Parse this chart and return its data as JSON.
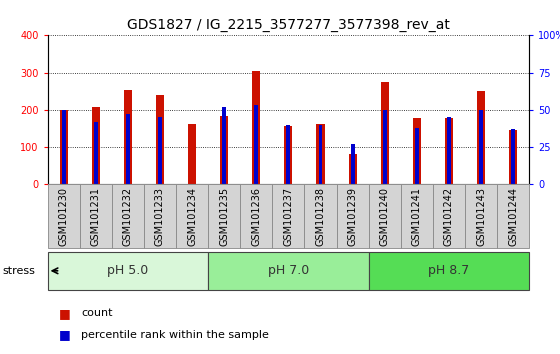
{
  "title": "GDS1827 / IG_2215_3577277_3577398_rev_at",
  "samples": [
    "GSM101230",
    "GSM101231",
    "GSM101232",
    "GSM101233",
    "GSM101234",
    "GSM101235",
    "GSM101236",
    "GSM101237",
    "GSM101238",
    "GSM101239",
    "GSM101240",
    "GSM101241",
    "GSM101242",
    "GSM101243",
    "GSM101244"
  ],
  "counts": [
    200,
    208,
    252,
    240,
    162,
    184,
    305,
    155,
    162,
    80,
    275,
    178,
    178,
    250,
    145
  ],
  "percentile_ranks": [
    50,
    42,
    47,
    45,
    0,
    52,
    53,
    40,
    40,
    27,
    50,
    38,
    45,
    50,
    37
  ],
  "groups": [
    {
      "label": "pH 5.0",
      "start": 0,
      "end": 5,
      "color": "#d9f7d9"
    },
    {
      "label": "pH 7.0",
      "start": 5,
      "end": 10,
      "color": "#99ee99"
    },
    {
      "label": "pH 8.7",
      "start": 10,
      "end": 15,
      "color": "#55dd55"
    }
  ],
  "ylim_left": [
    0,
    400
  ],
  "ylim_right": [
    0,
    100
  ],
  "yticks_left": [
    0,
    100,
    200,
    300,
    400
  ],
  "yticks_right": [
    0,
    25,
    50,
    75,
    100
  ],
  "yticklabels_right": [
    "0",
    "25",
    "50",
    "75",
    "100%"
  ],
  "bar_color": "#cc1100",
  "percentile_color": "#0000cc",
  "title_fontsize": 10,
  "tick_fontsize": 7,
  "group_label_fontsize": 9,
  "legend_fontsize": 8,
  "bar_width": 0.25,
  "blue_bar_width": 0.12
}
